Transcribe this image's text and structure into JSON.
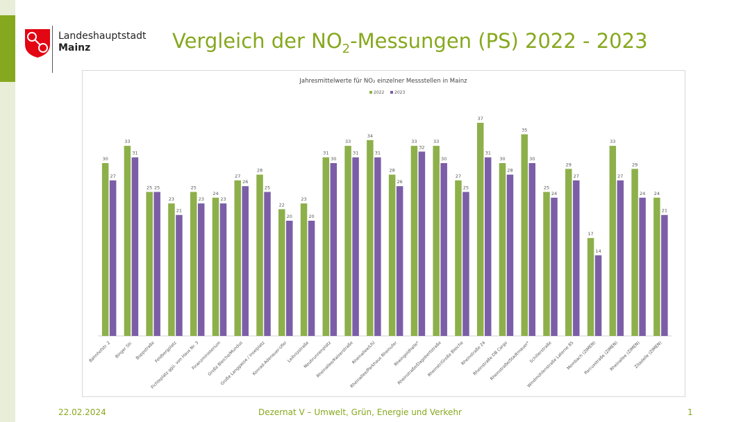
{
  "header": {
    "brand_line1": "Landeshauptstadt",
    "brand_line2": "Mainz",
    "title_pre": "Vergleich der NO",
    "title_sub": "2",
    "title_post": "-Messungen (PS) 2022 - 2023"
  },
  "footer": {
    "date": "22.02.2024",
    "department": "Dezernat V – Umwelt, Grün, Energie und Verkehr",
    "page": "1"
  },
  "colors": {
    "accent": "#86a81e",
    "series_2022": "#8db04a",
    "series_2023": "#7b5ea7"
  },
  "chart_data": {
    "type": "bar",
    "title": "Jahresmittelwerte für NO₂ einzelner Messstellen in Mainz",
    "legend_placement": "top",
    "grid": false,
    "ylim": [
      0,
      40
    ],
    "categories": [
      "Bahnhofstr. 2",
      "Binger Str.",
      "Boppstraße",
      "Feldbergplatz",
      "Fichteplatz ggü. von Haus Nr. 3",
      "Finanzministerium",
      "Große Bleiche/Mundus",
      "Große Langgasse / Inselplatz",
      "Konrad-Adenauer-Ufer",
      "Leibnizstraße",
      "Neubrunnenplatz",
      "Rheinallee/Kaiserstraße",
      "Rheinallee/LfU",
      "Rheinallee/Parkhaus Rheinufer",
      "Rheingoldhalle*",
      "Rheinstraße/Dagobertstraße",
      "Rheinstr/Große Bleiche",
      "Rheinstraße 24",
      "Rheinstraße DB Cargo",
      "Rheinstraße/Stadtmauer*",
      "Schillerstraße",
      "Windmühlenstraße Laterne 85",
      "Mombach (ZIMEN)",
      "Parcusstraße (ZIMEN)",
      "Rheinallee (ZIMEN)",
      "Zitadelle (ZIMEN)"
    ],
    "series": [
      {
        "name": "2022",
        "values": [
          30,
          33,
          25,
          23,
          25,
          24,
          27,
          28,
          22,
          23,
          31,
          33,
          34,
          28,
          33,
          33,
          27,
          37,
          30,
          35,
          25,
          29,
          17,
          33,
          29,
          24
        ]
      },
      {
        "name": "2023",
        "values": [
          27,
          31,
          25,
          21,
          23,
          23,
          26,
          25,
          20,
          20,
          30,
          31,
          31,
          26,
          32,
          30,
          25,
          31,
          28,
          30,
          24,
          27,
          14,
          27,
          24,
          21
        ]
      }
    ]
  }
}
